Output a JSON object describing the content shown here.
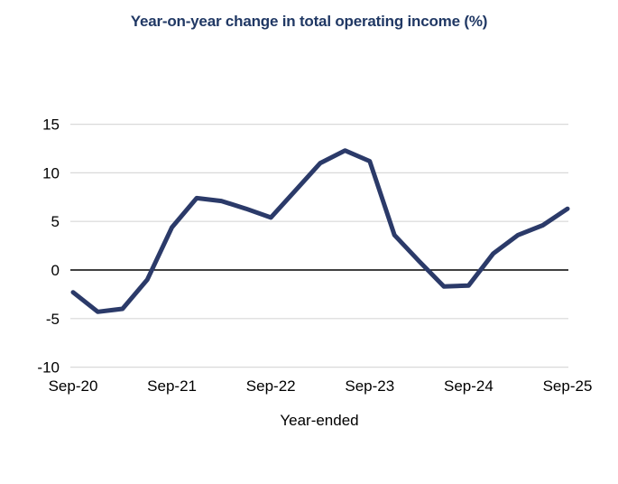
{
  "title": "Year-on-year change in total operating income (%)",
  "chart_data": {
    "type": "line",
    "title": "Year-on-year change in total operating income (%)",
    "xlabel": "Year-ended",
    "ylabel": "",
    "categories": [
      "Sep-20",
      "Dec-20",
      "Mar-21",
      "Jun-21",
      "Sep-21",
      "Dec-21",
      "Mar-22",
      "Jun-22",
      "Sep-22",
      "Dec-22",
      "Mar-23",
      "Jun-23",
      "Sep-23",
      "Dec-23",
      "Mar-24",
      "Jun-24",
      "Sep-24",
      "Dec-24",
      "Mar-25",
      "Jun-25",
      "Sep-25"
    ],
    "series": [
      {
        "name": "Year-on-year change in total operating income (%)",
        "values": [
          -2.3,
          -4.3,
          -4.0,
          -1.0,
          4.4,
          7.4,
          7.1,
          6.3,
          5.4,
          8.2,
          11.0,
          12.3,
          11.2,
          3.6,
          0.9,
          -1.7,
          -1.6,
          1.7,
          3.6,
          4.6,
          6.3
        ]
      }
    ],
    "x_tick_labels": [
      "Sep-20",
      "Sep-21",
      "Sep-22",
      "Sep-23",
      "Sep-24",
      "Sep-25"
    ],
    "x_tick_every_n_points": 4,
    "y_ticks": [
      -10,
      -5,
      0,
      5,
      10,
      15
    ],
    "ylim": [
      -10,
      15
    ],
    "grid": true,
    "legend_position": "none",
    "colors": {
      "line": "#2b3a69",
      "grid": "#d9d9d9",
      "zero_line": "#000000",
      "title": "#203864",
      "tick_text": "#000000"
    }
  }
}
